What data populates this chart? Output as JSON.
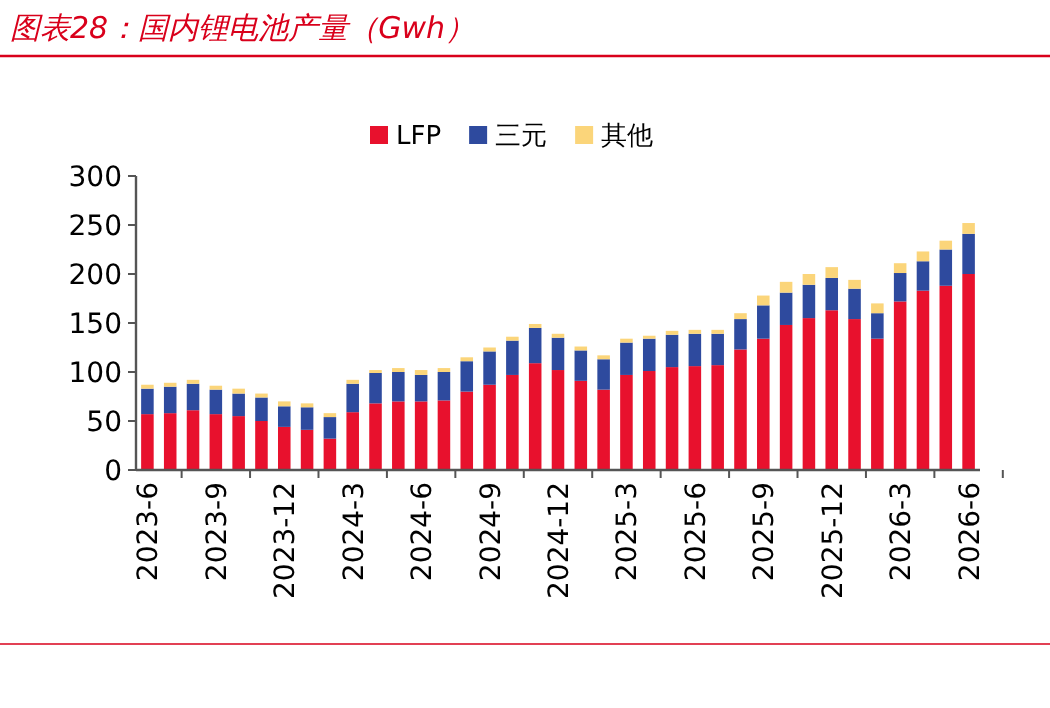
{
  "chart_data": {
    "type": "bar",
    "title": "图表28：国内锂电池产量（Gwh）",
    "stacked": true,
    "categories": [
      "2023-6",
      null,
      null,
      "2023-9",
      null,
      null,
      "2023-12",
      null,
      null,
      "2024-3",
      null,
      null,
      "2024-6",
      null,
      null,
      "2024-9",
      null,
      null,
      "2024-12",
      null,
      null,
      "2025-3",
      null,
      null,
      "2025-6",
      null,
      null,
      "2025-9",
      null,
      null,
      "2025-12",
      null,
      null,
      "2026-3",
      null,
      null,
      "2026-6"
    ],
    "series": [
      {
        "name": "LFP",
        "color": "#e8112d",
        "values": [
          57,
          58,
          61,
          57,
          55,
          50,
          44,
          41,
          32,
          59,
          68,
          70,
          70,
          71,
          80,
          87,
          97,
          109,
          102,
          91,
          82,
          97,
          101,
          105,
          106,
          107,
          123,
          134,
          148,
          155,
          163,
          154,
          134,
          172,
          183,
          188,
          200
        ]
      },
      {
        "name": "三元",
        "color": "#2e4a9e",
        "values": [
          26,
          27,
          27,
          25,
          23,
          24,
          21,
          23,
          22,
          29,
          31,
          30,
          27,
          29,
          31,
          34,
          35,
          36,
          33,
          31,
          31,
          33,
          33,
          33,
          33,
          32,
          31,
          34,
          33,
          34,
          33,
          31,
          26,
          29,
          30,
          37,
          41
        ]
      },
      {
        "name": "其他",
        "color": "#fbd57a",
        "values": [
          4,
          4,
          4,
          4,
          5,
          4,
          5,
          4,
          4,
          4,
          3,
          4,
          5,
          4,
          4,
          4,
          4,
          4,
          4,
          4,
          4,
          4,
          3,
          4,
          4,
          4,
          6,
          10,
          11,
          11,
          11,
          9,
          10,
          10,
          10,
          9,
          11
        ]
      }
    ],
    "ylim": [
      0,
      300
    ],
    "yticks": [
      0,
      50,
      100,
      150,
      200,
      250,
      300
    ],
    "legend": "top",
    "grid": false
  }
}
